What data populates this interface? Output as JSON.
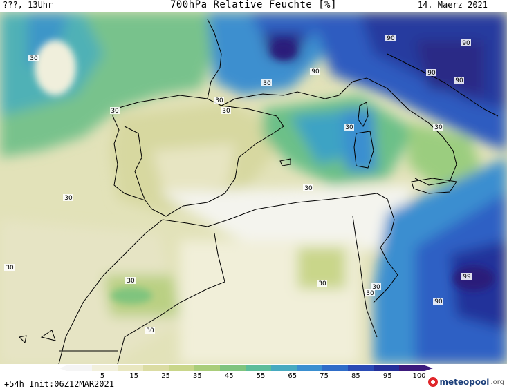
{
  "header": {
    "left_text": "???, 13Uhr",
    "title": "700hPa Relative Feuchte [%]",
    "date": "14. Maerz 2021"
  },
  "footer": {
    "init_text": "+54h  Init:06Z12MAR2021",
    "brand_name": "meteopool",
    "brand_domain": ".org",
    "brand_icon": "meteopool-logo-icon"
  },
  "legend": {
    "tick_labels": [
      "5",
      "15",
      "25",
      "35",
      "45",
      "55",
      "65",
      "75",
      "85",
      "95",
      "100"
    ],
    "colors": [
      "#f5f5f5",
      "#f2f0dc",
      "#e9e7c0",
      "#dbdca3",
      "#c9d68a",
      "#a9cd7a",
      "#7fc47e",
      "#5cbd9a",
      "#47aac0",
      "#3a8fd0",
      "#2f6dc8",
      "#2a4bb5",
      "#24309a",
      "#3c1a7c"
    ]
  },
  "contour_labels": [
    "30",
    "30",
    "30",
    "30",
    "30",
    "30",
    "30",
    "30",
    "30",
    "30",
    "30",
    "30",
    "30",
    "30",
    "30",
    "90",
    "90",
    "90",
    "90",
    "90",
    "90",
    "99"
  ]
}
